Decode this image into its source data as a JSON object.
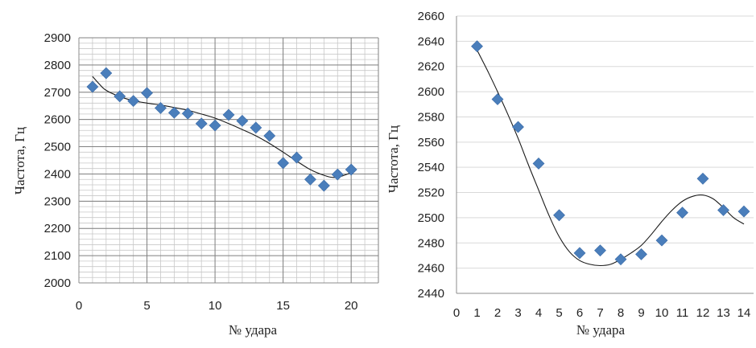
{
  "chart_data": [
    {
      "type": "scatter",
      "title": "",
      "xlabel": "№ удара",
      "ylabel": "Частота, Гц",
      "xlim": [
        0,
        22
      ],
      "ylim": [
        2000,
        2900
      ],
      "xticks": [
        0,
        5,
        10,
        15,
        20
      ],
      "yticks": [
        2000,
        2100,
        2200,
        2300,
        2400,
        2500,
        2600,
        2700,
        2800,
        2900
      ],
      "grid": "major and minor",
      "marker": "diamond",
      "marker_color": "#4a7ebb",
      "trendline": "polynomial",
      "series": [
        {
          "x": [
            1,
            2,
            3,
            4,
            5,
            6,
            7,
            8,
            9,
            10,
            11,
            12,
            13,
            14,
            15,
            16,
            17,
            18,
            19,
            20
          ],
          "y": [
            2720,
            2770,
            2685,
            2668,
            2697,
            2642,
            2625,
            2622,
            2585,
            2578,
            2617,
            2595,
            2570,
            2540,
            2440,
            2460,
            2380,
            2357,
            2398,
            2416
          ]
        }
      ],
      "trend": {
        "x": [
          1,
          1.5,
          2,
          3,
          4,
          5,
          6,
          7,
          8,
          9,
          10,
          11,
          12,
          13,
          14,
          15,
          16,
          17,
          18,
          18.7,
          19.3,
          20
        ],
        "y": [
          2758,
          2730,
          2707,
          2684,
          2669,
          2660,
          2653,
          2644,
          2634,
          2620,
          2605,
          2585,
          2563,
          2540,
          2512,
          2480,
          2447,
          2416,
          2395,
          2387,
          2392,
          2405
        ]
      }
    },
    {
      "type": "scatter",
      "title": "",
      "xlabel": "№ удара",
      "ylabel": "Частота, Гц",
      "xlim": [
        0,
        14
      ],
      "ylim": [
        2440,
        2660
      ],
      "xticks": [
        0,
        1,
        2,
        3,
        4,
        5,
        6,
        7,
        8,
        9,
        10,
        11,
        12,
        13,
        14
      ],
      "yticks": [
        2440,
        2460,
        2480,
        2500,
        2520,
        2540,
        2560,
        2580,
        2600,
        2620,
        2640,
        2660
      ],
      "grid": "horizontal",
      "marker": "diamond",
      "marker_color": "#4a7ebb",
      "trendline": "polynomial",
      "series": [
        {
          "x": [
            1,
            2,
            3,
            4,
            5,
            6,
            7,
            8,
            9,
            10,
            11,
            12,
            13,
            14
          ],
          "y": [
            2636,
            2594,
            2572,
            2543,
            2502,
            2472,
            2474,
            2467,
            2471,
            2482,
            2504,
            2531,
            2506,
            2505
          ]
        }
      ],
      "trend": {
        "x": [
          1,
          1.5,
          2,
          2.5,
          3,
          3.5,
          4,
          4.5,
          5,
          5.5,
          6,
          6.5,
          7,
          7.5,
          8,
          8.5,
          9,
          9.5,
          10,
          10.5,
          11,
          11.5,
          12,
          12.5,
          13,
          13.5,
          14
        ],
        "y": [
          2633,
          2617,
          2600,
          2582,
          2563,
          2542,
          2522,
          2502,
          2485,
          2473,
          2466,
          2463,
          2462,
          2463,
          2467,
          2472,
          2478,
          2487,
          2497,
          2506,
          2513,
          2517,
          2518,
          2515,
          2508,
          2500,
          2495
        ]
      }
    }
  ]
}
